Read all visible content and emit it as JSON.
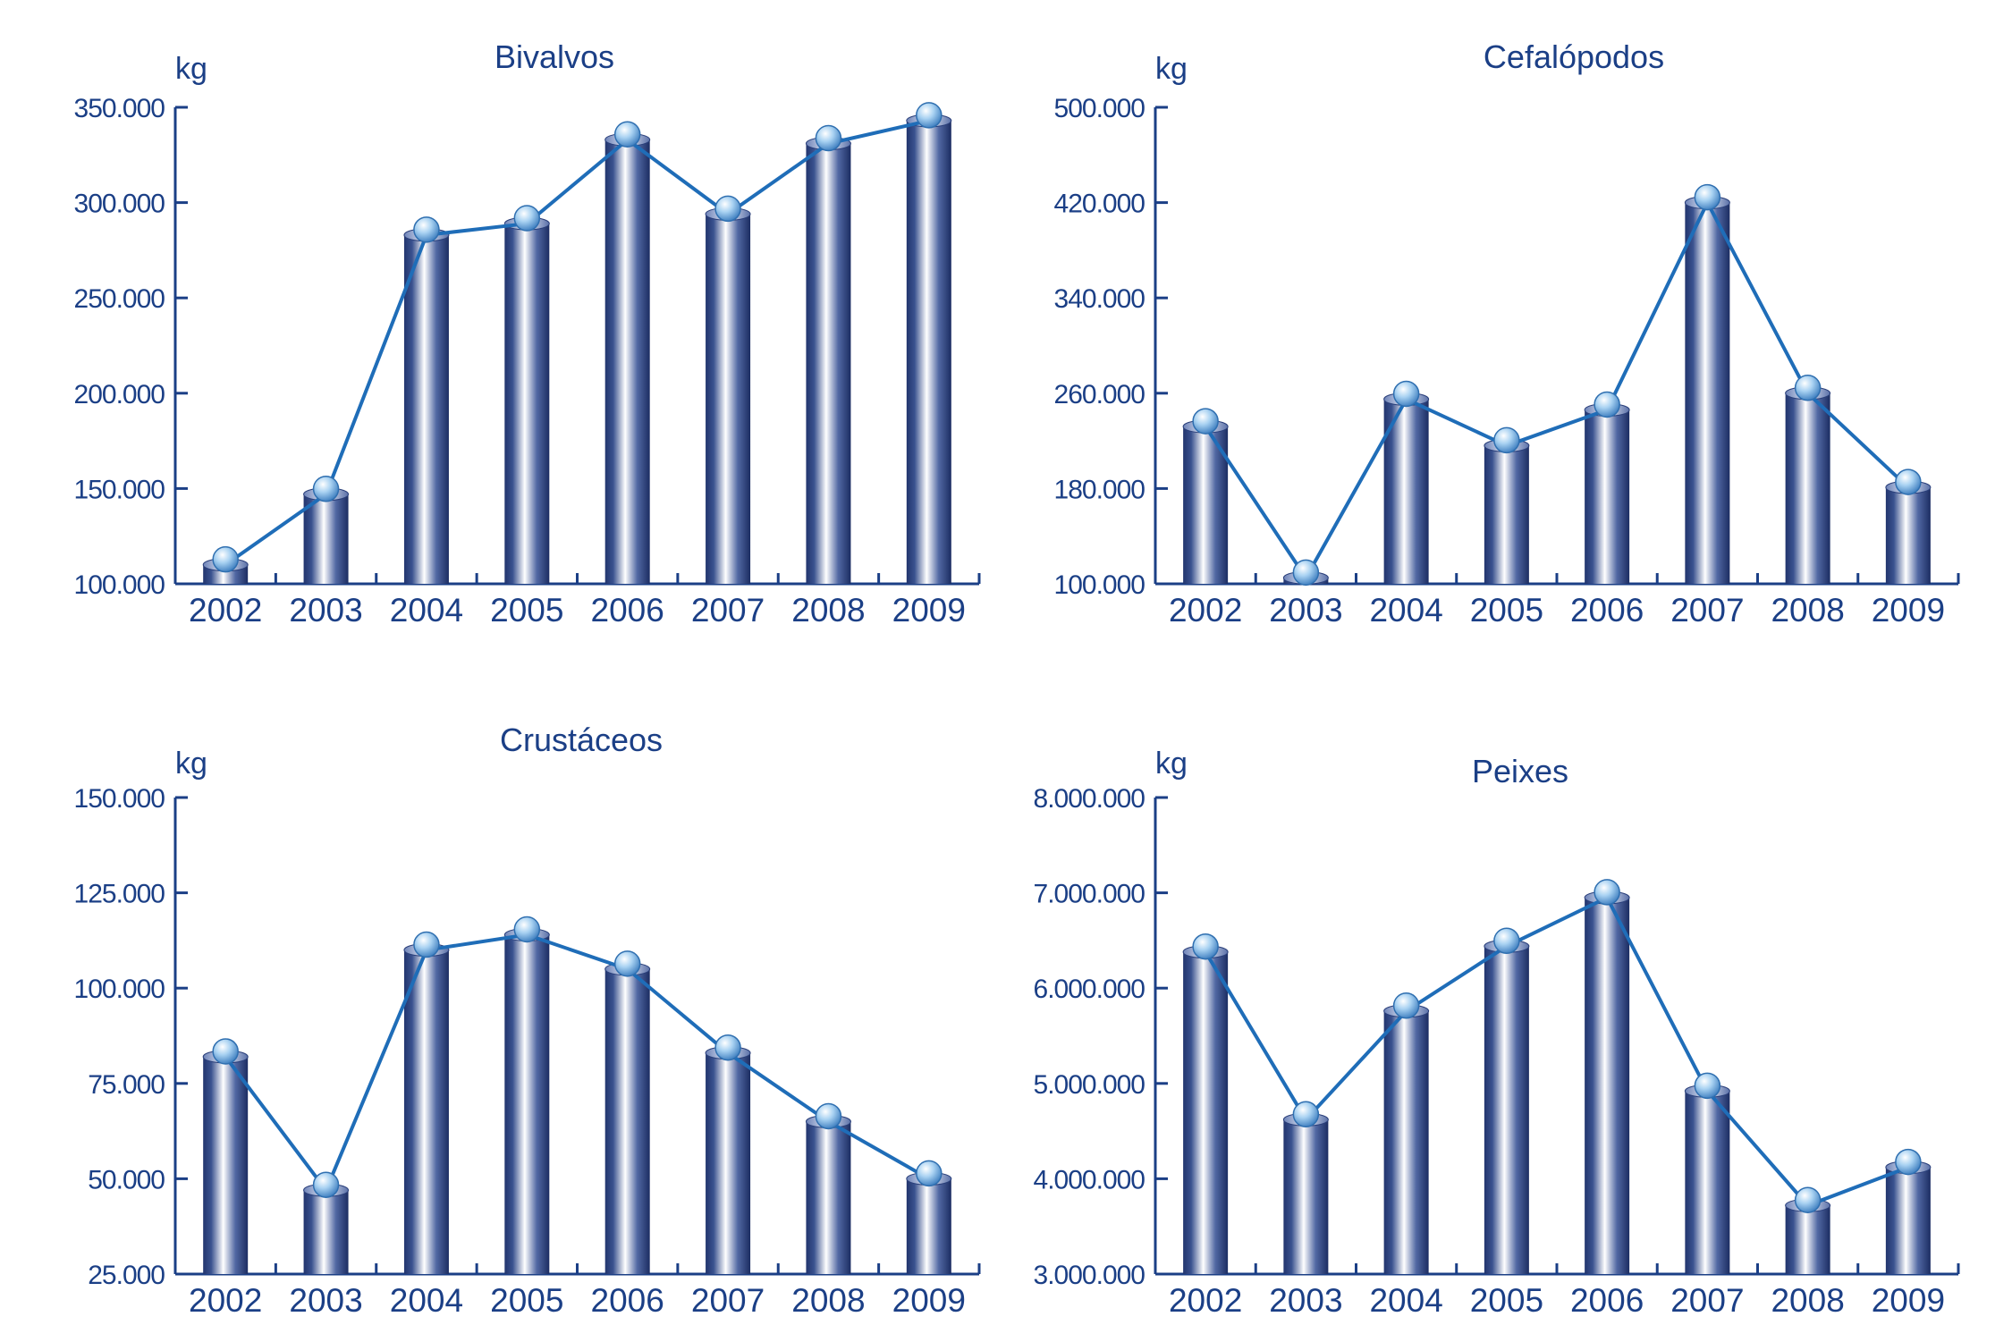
{
  "colors": {
    "axis": "#1b3f86",
    "text": "#1b3f86",
    "line": "#1f6db8",
    "bar_dark": "#22356e",
    "bar_light": "#ffffff",
    "marker": "#9cc8ee"
  },
  "chart_data": [
    {
      "type": "bar",
      "title": "Bivalvos",
      "ylabel": "kg",
      "categories": [
        "2002",
        "2003",
        "2004",
        "2005",
        "2006",
        "2007",
        "2008",
        "2009"
      ],
      "values": [
        110000,
        147000,
        283000,
        289000,
        333000,
        294000,
        331000,
        343000
      ],
      "ylim": [
        100000,
        350000
      ],
      "yticks": [
        100000,
        150000,
        200000,
        250000,
        300000,
        350000
      ],
      "ytick_labels": [
        "100.000",
        "150.000",
        "200.000",
        "250.000",
        "300.000",
        "350.000"
      ],
      "overlay": "line",
      "grid": false
    },
    {
      "type": "bar",
      "title": "Cefalópodos",
      "ylabel": "kg",
      "categories": [
        "2002",
        "2003",
        "2004",
        "2005",
        "2006",
        "2007",
        "2008",
        "2009"
      ],
      "values": [
        232000,
        105000,
        255000,
        216000,
        246000,
        420000,
        260000,
        181000
      ],
      "ylim": [
        100000,
        500000
      ],
      "yticks": [
        100000,
        180000,
        260000,
        340000,
        420000,
        500000
      ],
      "ytick_labels": [
        "100.000",
        "180.000",
        "260.000",
        "340.000",
        "420.000",
        "500.000"
      ],
      "overlay": "line",
      "grid": false
    },
    {
      "type": "bar",
      "title": "Crustáceos",
      "ylabel": "kg",
      "categories": [
        "2002",
        "2003",
        "2004",
        "2005",
        "2006",
        "2007",
        "2008",
        "2009"
      ],
      "values": [
        82000,
        47000,
        110000,
        114000,
        105000,
        83000,
        65000,
        50000
      ],
      "ylim": [
        25000,
        150000
      ],
      "yticks": [
        25000,
        50000,
        75000,
        100000,
        125000,
        150000
      ],
      "ytick_labels": [
        "25.000",
        "50.000",
        "75.000",
        "100.000",
        "125.000",
        "150.000"
      ],
      "overlay": "line",
      "grid": false
    },
    {
      "type": "bar",
      "title": "Peixes",
      "ylabel": "kg",
      "categories": [
        "2002",
        "2003",
        "2004",
        "2005",
        "2006",
        "2007",
        "2008",
        "2009"
      ],
      "values": [
        6380000,
        4620000,
        5760000,
        6440000,
        6950000,
        4920000,
        3720000,
        4120000
      ],
      "ylim": [
        3000000,
        8000000
      ],
      "yticks": [
        3000000,
        4000000,
        5000000,
        6000000,
        7000000,
        8000000
      ],
      "ytick_labels": [
        "3.000.000",
        "4.000.000",
        "5.000.000",
        "6.000.000",
        "7.000.000",
        "8.000.000"
      ],
      "overlay": "line",
      "grid": false
    }
  ]
}
